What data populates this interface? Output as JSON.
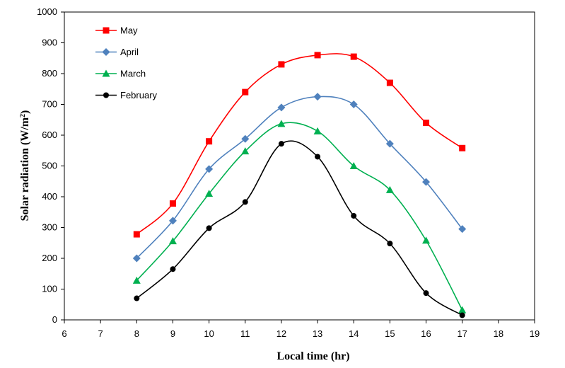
{
  "chart_data": {
    "type": "line",
    "xlabel": "Local time (hr)",
    "ylabel_main": "Solar radiation  (W/m",
    "ylabel_sup": "2",
    "ylabel_close": ")",
    "xlim": [
      6,
      19
    ],
    "ylim": [
      0,
      1000
    ],
    "x_ticks": [
      6,
      7,
      8,
      9,
      10,
      11,
      12,
      13,
      14,
      15,
      16,
      17,
      18,
      19
    ],
    "y_ticks": [
      0,
      100,
      200,
      300,
      400,
      500,
      600,
      700,
      800,
      900,
      1000
    ],
    "x": [
      8,
      9,
      10,
      11,
      12,
      13,
      14,
      15,
      16,
      17
    ],
    "legend_position": "top-left",
    "series": [
      {
        "name": "May",
        "color": "#ff0000",
        "marker": "square",
        "values": [
          278,
          378,
          580,
          740,
          830,
          860,
          855,
          770,
          640,
          558
        ]
      },
      {
        "name": "April",
        "color": "#4f81bd",
        "marker": "diamond",
        "values": [
          200,
          322,
          490,
          588,
          690,
          725,
          700,
          572,
          448,
          295
        ]
      },
      {
        "name": "March",
        "color": "#00b050",
        "marker": "triangle",
        "values": [
          128,
          256,
          410,
          548,
          637,
          613,
          500,
          422,
          258,
          32
        ]
      },
      {
        "name": "February",
        "color": "#000000",
        "marker": "circle",
        "values": [
          70,
          165,
          298,
          383,
          572,
          530,
          338,
          248,
          87,
          15
        ]
      }
    ]
  }
}
